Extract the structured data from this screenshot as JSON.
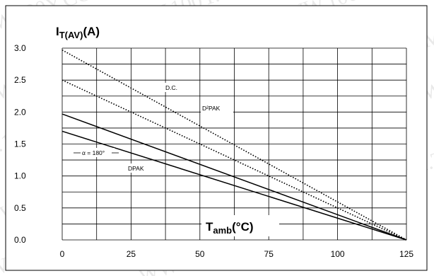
{
  "chart_data": {
    "type": "line",
    "ylabel_main": "I",
    "ylabel_sub": "T(AV)",
    "ylabel_unit": "(A)",
    "xlabel_main": "T",
    "xlabel_sub": "amb",
    "xlabel_unit": "(°C)",
    "xlim": [
      0,
      125
    ],
    "ylim": [
      0,
      3.0
    ],
    "x_ticks": [
      "0",
      "25",
      "50",
      "75",
      "100",
      "125"
    ],
    "y_ticks": [
      "0.0",
      "0.5",
      "1.0",
      "1.5",
      "2.0",
      "2.5",
      "3.0"
    ],
    "grid": true,
    "series": [
      {
        "name": "D.C.",
        "style": "dotted",
        "x": [
          0,
          125
        ],
        "y": [
          2.97,
          0.0
        ]
      },
      {
        "name": "D²PAK",
        "style": "dotted",
        "x": [
          0,
          125
        ],
        "y": [
          2.5,
          0.0
        ]
      },
      {
        "name": "α = 180°",
        "style": "solid",
        "x": [
          0,
          125
        ],
        "y": [
          1.97,
          0.0
        ]
      },
      {
        "name": "DPAK",
        "style": "solid",
        "x": [
          0,
          125
        ],
        "y": [
          1.7,
          0.0
        ]
      }
    ],
    "annotations": {
      "dc": "D.C.",
      "d2pak": "D²PAK",
      "alpha": "α = 180°",
      "dpak": "DPAK"
    },
    "watermark": "WWW.100Y.COM.TW"
  }
}
